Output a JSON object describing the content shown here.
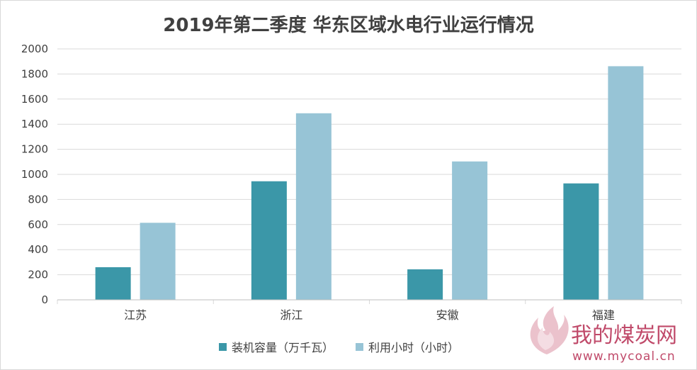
{
  "chart_data": {
    "type": "bar",
    "title": "2019年第二季度 华东区域水电行业运行情况",
    "categories": [
      "江苏",
      "浙江",
      "安徽",
      "福建"
    ],
    "series": [
      {
        "name": "装机容量（万千瓦）",
        "values": [
          260,
          945,
          243,
          928
        ],
        "color": "#3b97a8"
      },
      {
        "name": "利用小时（小时）",
        "values": [
          614,
          1487,
          1103,
          1862
        ],
        "color": "#97c4d6"
      }
    ],
    "ylim": [
      0,
      2000
    ],
    "yticks": [
      0,
      200,
      400,
      600,
      800,
      1000,
      1200,
      1400,
      1600,
      1800,
      2000
    ],
    "grid": true,
    "legend_position": "bottom"
  },
  "watermark": {
    "brand": "我的煤炭网",
    "url": "www.mycoal.cn"
  }
}
